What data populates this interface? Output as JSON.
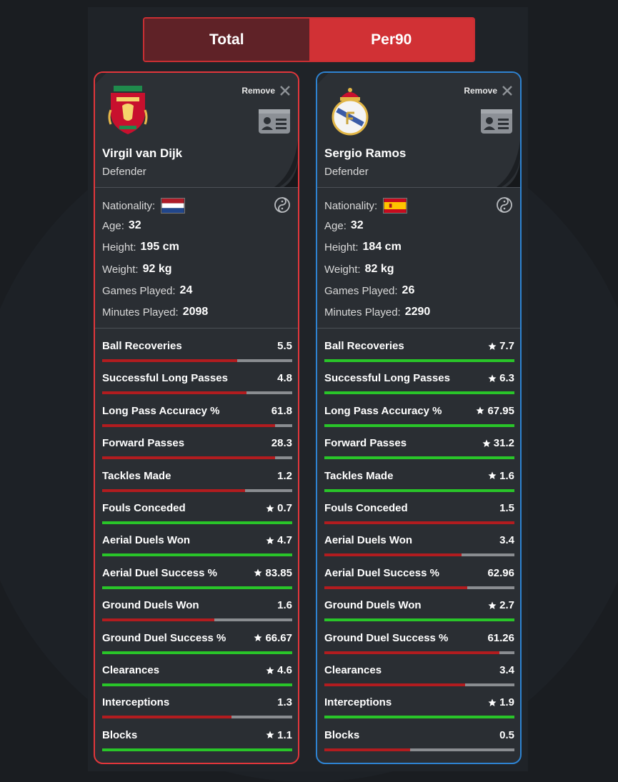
{
  "toggle": {
    "total_label": "Total",
    "per90_label": "Per90",
    "selected": "Per90"
  },
  "players": [
    {
      "name": "Virgil van Dijk",
      "position": "Defender",
      "club_icon": "liverpool-crest-icon",
      "nationality_flag": "netherlands-flag-icon",
      "remove_label": "Remove",
      "info": {
        "nationality_label": "Nationality:",
        "age_label": "Age:",
        "age": "32",
        "height_label": "Height:",
        "height": "195 cm",
        "weight_label": "Weight:",
        "weight": "92 kg",
        "games_label": "Games Played:",
        "games": "24",
        "minutes_label": "Minutes Played:",
        "minutes": "2098"
      },
      "stats": [
        {
          "label": "Ball Recoveries",
          "value": "5.5",
          "star": false,
          "fill": 0.71,
          "color": "red"
        },
        {
          "label": "Successful Long Passes",
          "value": "4.8",
          "star": false,
          "fill": 0.76,
          "color": "red"
        },
        {
          "label": "Long Pass Accuracy %",
          "value": "61.8",
          "star": false,
          "fill": 0.91,
          "color": "red"
        },
        {
          "label": "Forward Passes",
          "value": "28.3",
          "star": false,
          "fill": 0.91,
          "color": "red"
        },
        {
          "label": "Tackles Made",
          "value": "1.2",
          "star": false,
          "fill": 0.75,
          "color": "red"
        },
        {
          "label": "Fouls Conceded",
          "value": "0.7",
          "star": true,
          "fill": 1.0,
          "color": "green"
        },
        {
          "label": "Aerial Duels Won",
          "value": "4.7",
          "star": true,
          "fill": 1.0,
          "color": "green"
        },
        {
          "label": "Aerial Duel Success %",
          "value": "83.85",
          "star": true,
          "fill": 1.0,
          "color": "green"
        },
        {
          "label": "Ground Duels Won",
          "value": "1.6",
          "star": false,
          "fill": 0.59,
          "color": "red"
        },
        {
          "label": "Ground Duel Success %",
          "value": "66.67",
          "star": true,
          "fill": 1.0,
          "color": "green"
        },
        {
          "label": "Clearances",
          "value": "4.6",
          "star": true,
          "fill": 1.0,
          "color": "green"
        },
        {
          "label": "Interceptions",
          "value": "1.3",
          "star": false,
          "fill": 0.68,
          "color": "red"
        },
        {
          "label": "Blocks",
          "value": "1.1",
          "star": true,
          "fill": 1.0,
          "color": "green"
        }
      ]
    },
    {
      "name": "Sergio Ramos",
      "position": "Defender",
      "club_icon": "real-madrid-crest-icon",
      "nationality_flag": "spain-flag-icon",
      "remove_label": "Remove",
      "info": {
        "nationality_label": "Nationality:",
        "age_label": "Age:",
        "age": "32",
        "height_label": "Height:",
        "height": "184 cm",
        "weight_label": "Weight:",
        "weight": "82 kg",
        "games_label": "Games Played:",
        "games": "26",
        "minutes_label": "Minutes Played:",
        "minutes": "2290"
      },
      "stats": [
        {
          "label": "Ball Recoveries",
          "value": "7.7",
          "star": true,
          "fill": 1.0,
          "color": "green"
        },
        {
          "label": "Successful Long Passes",
          "value": "6.3",
          "star": true,
          "fill": 1.0,
          "color": "green"
        },
        {
          "label": "Long Pass Accuracy %",
          "value": "67.95",
          "star": true,
          "fill": 1.0,
          "color": "green"
        },
        {
          "label": "Forward Passes",
          "value": "31.2",
          "star": true,
          "fill": 1.0,
          "color": "green"
        },
        {
          "label": "Tackles Made",
          "value": "1.6",
          "star": true,
          "fill": 1.0,
          "color": "green"
        },
        {
          "label": "Fouls Conceded",
          "value": "1.5",
          "star": false,
          "fill": 1.0,
          "color": "red"
        },
        {
          "label": "Aerial Duels Won",
          "value": "3.4",
          "star": false,
          "fill": 0.72,
          "color": "red"
        },
        {
          "label": "Aerial Duel Success %",
          "value": "62.96",
          "star": false,
          "fill": 0.75,
          "color": "red"
        },
        {
          "label": "Ground Duels Won",
          "value": "2.7",
          "star": true,
          "fill": 1.0,
          "color": "green"
        },
        {
          "label": "Ground Duel Success %",
          "value": "61.26",
          "star": false,
          "fill": 0.92,
          "color": "red"
        },
        {
          "label": "Clearances",
          "value": "3.4",
          "star": false,
          "fill": 0.74,
          "color": "red"
        },
        {
          "label": "Interceptions",
          "value": "1.9",
          "star": true,
          "fill": 1.0,
          "color": "green"
        },
        {
          "label": "Blocks",
          "value": "0.5",
          "star": false,
          "fill": 0.45,
          "color": "red"
        }
      ]
    }
  ],
  "colors": {
    "left_border": "#e2363b",
    "right_border": "#2e83d2",
    "bar_red": "#b21c1f",
    "bar_green": "#29c529",
    "bar_track": "#8a8d91"
  }
}
